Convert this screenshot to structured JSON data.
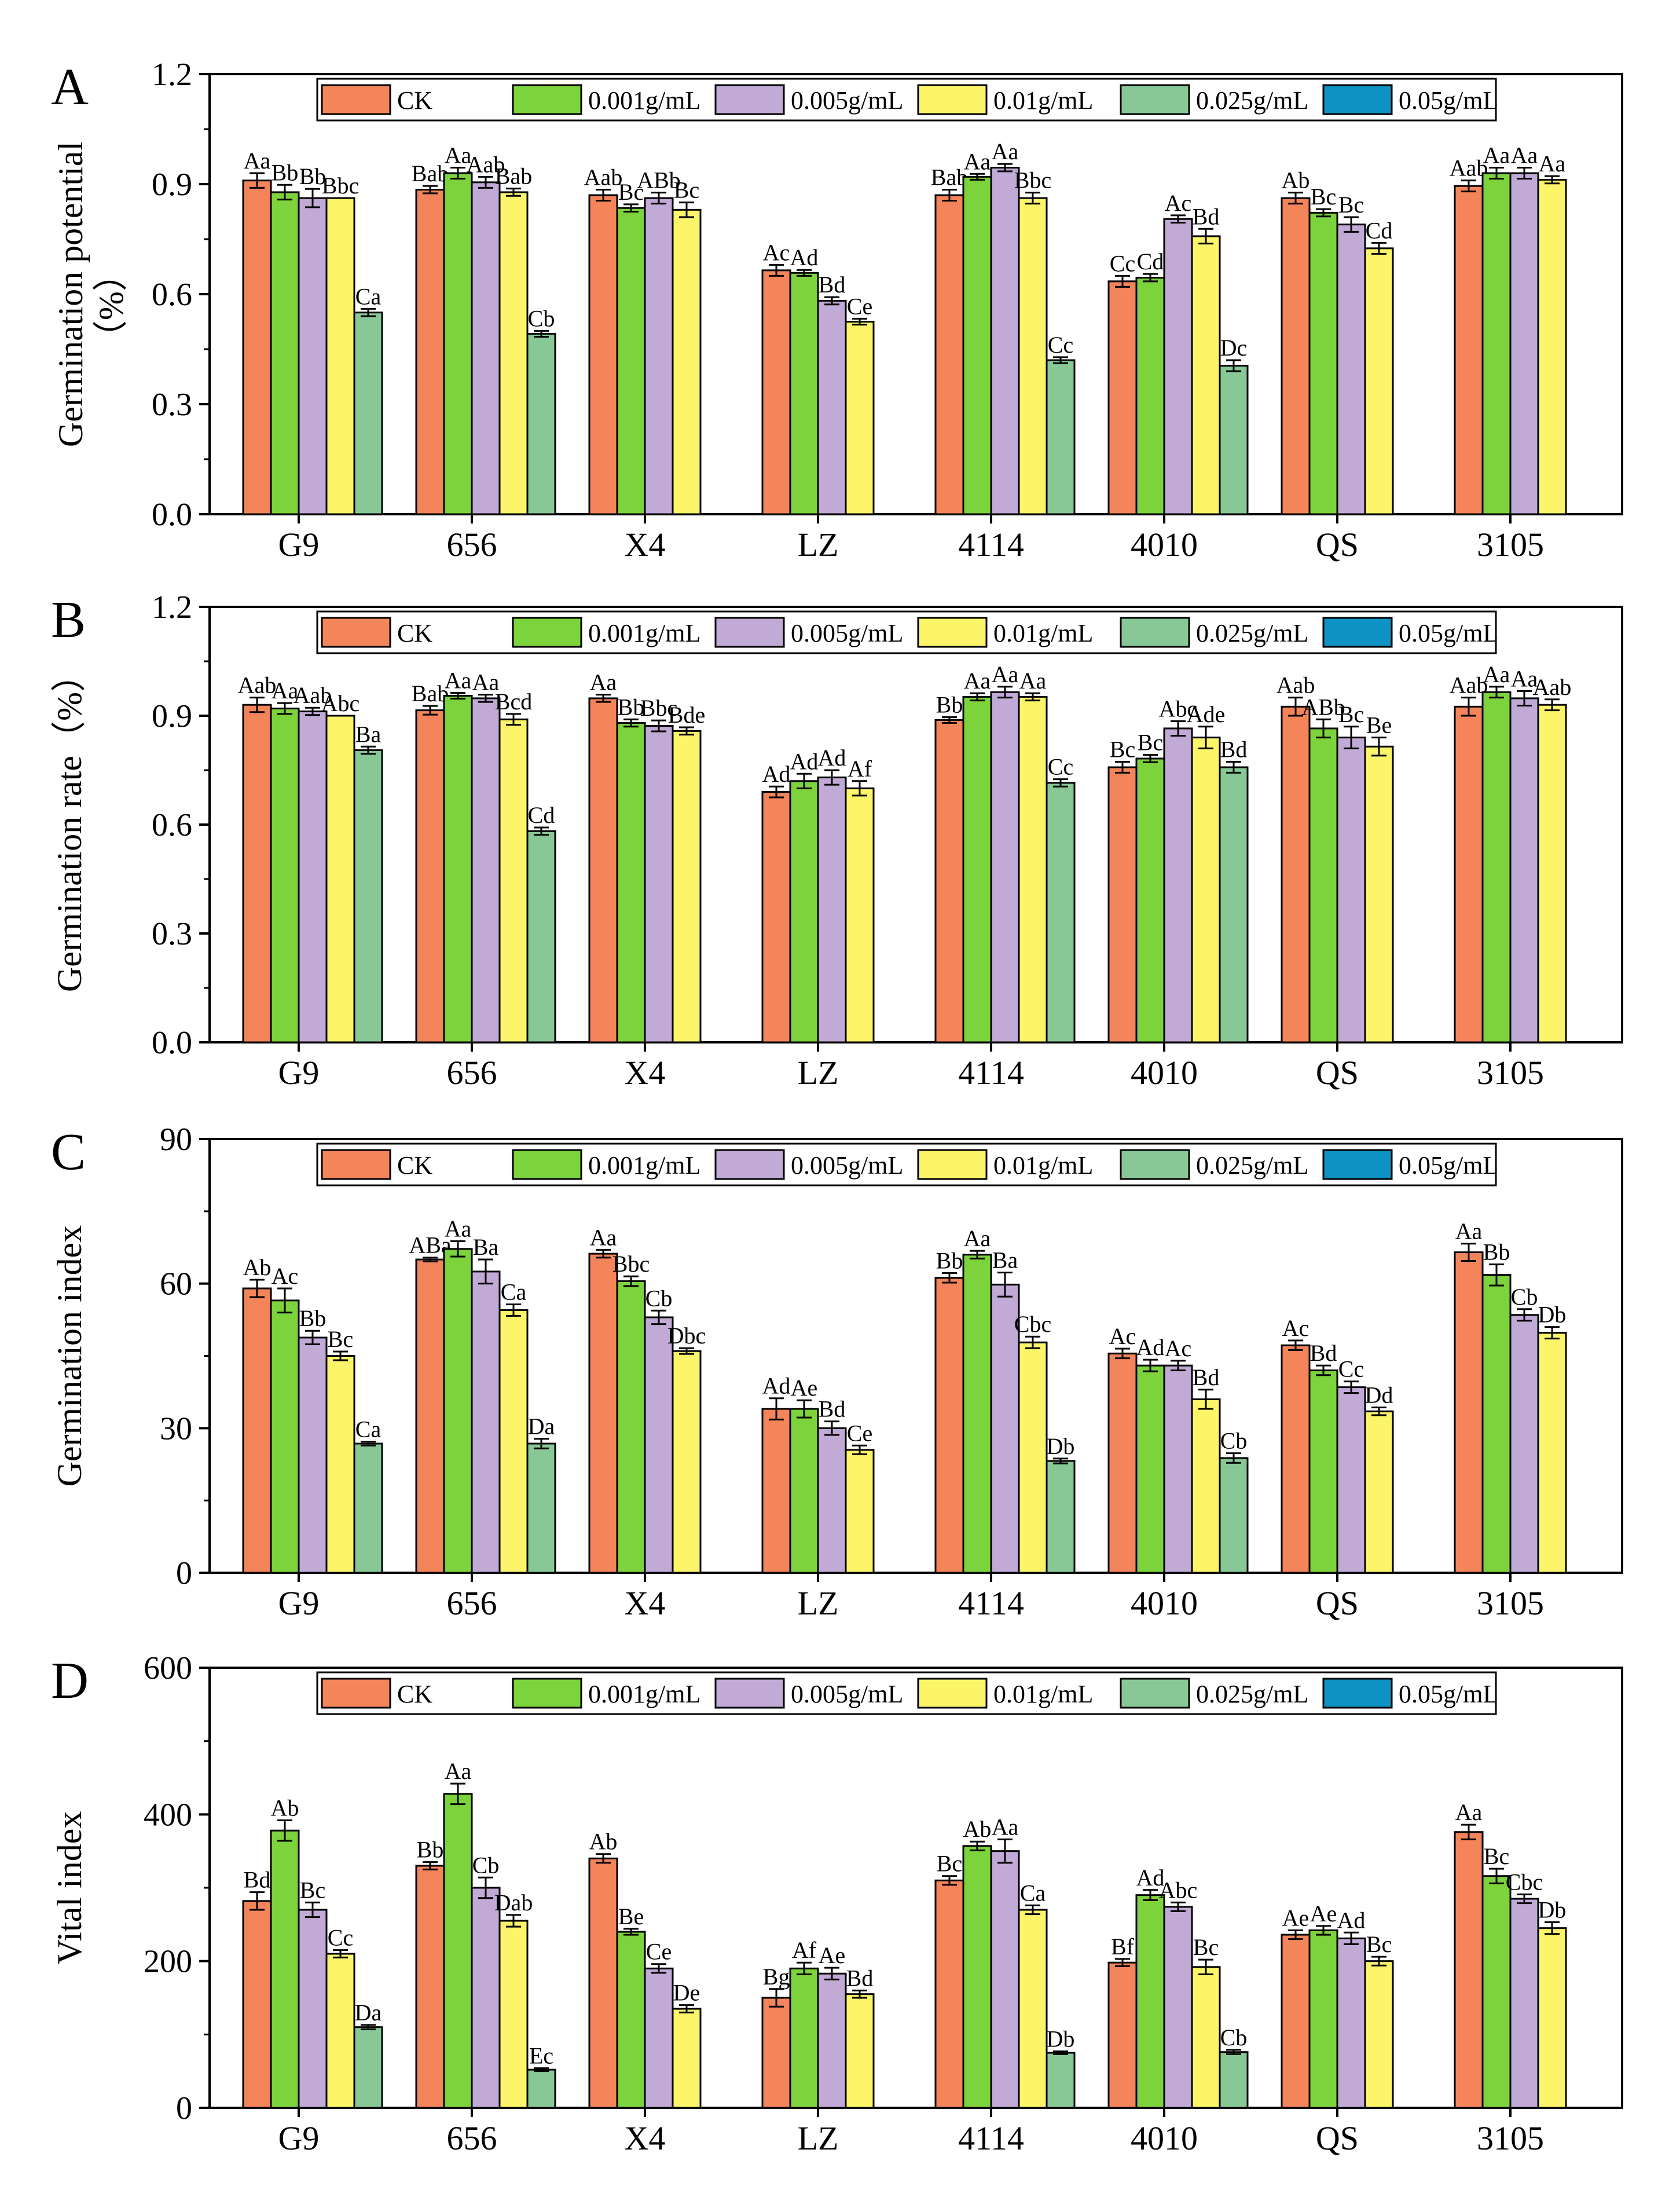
{
  "colors": {
    "CK": "#f4845a",
    "0.001g/mL": "#7dd33b",
    "0.005g/mL": "#c1aad6",
    "0.01g/mL": "#fcf56a",
    "0.025g/mL": "#88c896",
    "0.05g/mL": "#0d92c3"
  },
  "chart_data": [
    {
      "type": "bar",
      "panel": "A",
      "ylabel": "Germination potential",
      "ylabel_unit": "（%）",
      "ylim": [
        0,
        1.2
      ],
      "yticks": [
        "0.0",
        "0.3",
        "0.6",
        "0.9",
        "1.2"
      ],
      "categories": [
        "G9",
        "656",
        "X4",
        "LZ",
        "4114",
        "4010",
        "QS",
        "3105"
      ],
      "legend": [
        "CK",
        "0.001g/mL",
        "0.005g/mL",
        "0.01g/mL",
        "0.025g/mL",
        "0.05g/mL"
      ],
      "series": [
        {
          "name": "CK",
          "values": [
            0.91,
            0.885,
            0.87,
            0.665,
            0.87,
            0.635,
            0.862,
            0.895
          ],
          "errors": [
            0.02,
            0.01,
            0.015,
            0.015,
            0.015,
            0.015,
            0.015,
            0.015
          ],
          "labels": [
            "Aa",
            "Bab",
            "Aab",
            "Ac",
            "Bab",
            "Cc",
            "Ab",
            "Aab"
          ]
        },
        {
          "name": "0.001g/mL",
          "values": [
            0.878,
            0.93,
            0.835,
            0.658,
            0.92,
            0.645,
            0.822,
            0.93
          ],
          "errors": [
            0.02,
            0.015,
            0.01,
            0.008,
            0.008,
            0.01,
            0.01,
            0.015
          ],
          "labels": [
            "Bb",
            "Aa",
            "Bc",
            "Ad",
            "Aa",
            "Cd",
            "Bc",
            "Aa"
          ]
        },
        {
          "name": "0.005g/mL",
          "values": [
            0.862,
            0.905,
            0.862,
            0.582,
            0.945,
            0.805,
            0.79,
            0.93
          ],
          "errors": [
            0.025,
            0.015,
            0.015,
            0.01,
            0.01,
            0.01,
            0.02,
            0.015
          ],
          "labels": [
            "Bb",
            "Aab",
            "ABb",
            "Bd",
            "Aa",
            "Ac",
            "Bc",
            "Aa"
          ]
        },
        {
          "name": "0.01g/mL",
          "values": [
            0.862,
            0.878,
            0.83,
            0.525,
            0.862,
            0.758,
            0.725,
            0.912
          ],
          "errors": [
            0,
            0.01,
            0.02,
            0.008,
            0.015,
            0.02,
            0.015,
            0.01
          ],
          "labels": [
            "Bbc",
            "Bab",
            "Bc",
            "Ce",
            "Bbc",
            "Bd",
            "Cd",
            "Aa"
          ]
        },
        {
          "name": "0.025g/mL",
          "values": [
            0.55,
            0.492,
            null,
            null,
            0.42,
            0.405,
            null,
            null
          ],
          "errors": [
            0.01,
            0.008,
            0,
            0,
            0.008,
            0.015,
            0,
            0
          ],
          "labels": [
            "Ca",
            "Cb",
            "",
            "",
            "Cc",
            "Dc",
            "",
            ""
          ]
        },
        {
          "name": "0.05g/mL",
          "values": [
            null,
            null,
            null,
            null,
            null,
            null,
            null,
            null
          ],
          "errors": [
            0,
            0,
            0,
            0,
            0,
            0,
            0,
            0
          ],
          "labels": [
            "",
            "",
            "",
            "",
            "",
            "",
            "",
            ""
          ]
        }
      ]
    },
    {
      "type": "bar",
      "panel": "B",
      "ylabel": "Germination rate（%）",
      "ylabel_unit": "",
      "ylim": [
        0,
        1.2
      ],
      "yticks": [
        "0.0",
        "0.3",
        "0.6",
        "0.9",
        "1.2"
      ],
      "categories": [
        "G9",
        "656",
        "X4",
        "LZ",
        "4114",
        "4010",
        "QS",
        "3105"
      ],
      "legend": [
        "CK",
        "0.001g/mL",
        "0.005g/mL",
        "0.01g/mL",
        "0.025g/mL",
        "0.05g/mL"
      ],
      "series": [
        {
          "name": "CK",
          "values": [
            0.93,
            0.915,
            0.948,
            0.69,
            0.888,
            0.758,
            0.925,
            0.925
          ],
          "errors": [
            0.02,
            0.012,
            0.01,
            0.015,
            0.008,
            0.015,
            0.025,
            0.025
          ],
          "labels": [
            "Aab",
            "Bab",
            "Aa",
            "Ad",
            "Bb",
            "Bc",
            "Aab",
            "Aab"
          ]
        },
        {
          "name": "0.001g/mL",
          "values": [
            0.92,
            0.955,
            0.88,
            0.72,
            0.952,
            0.782,
            0.865,
            0.965
          ],
          "errors": [
            0.015,
            0.008,
            0.01,
            0.02,
            0.01,
            0.01,
            0.025,
            0.015
          ],
          "labels": [
            "Aa",
            "Aa",
            "Bb",
            "Ad",
            "Aa",
            "Bc",
            "ABb",
            "Aa"
          ]
        },
        {
          "name": "0.005g/mL",
          "values": [
            0.912,
            0.948,
            0.872,
            0.73,
            0.965,
            0.865,
            0.84,
            0.948
          ],
          "errors": [
            0.01,
            0.01,
            0.015,
            0.02,
            0.015,
            0.02,
            0.03,
            0.02
          ],
          "labels": [
            "Aab",
            "Aa",
            "Bbc",
            "Ad",
            "Aa",
            "Abc",
            "Bc",
            "Aa"
          ]
        },
        {
          "name": "0.01g/mL",
          "values": [
            0.9,
            0.89,
            0.858,
            0.7,
            0.952,
            0.84,
            0.815,
            0.93
          ],
          "errors": [
            0,
            0.015,
            0.01,
            0.02,
            0.01,
            0.03,
            0.025,
            0.015
          ],
          "labels": [
            "Abc",
            "Bcd",
            "Bde",
            "Af",
            "Aa",
            "Ade",
            "Be",
            "Aab"
          ]
        },
        {
          "name": "0.025g/mL",
          "values": [
            0.805,
            0.582,
            null,
            null,
            0.715,
            0.758,
            null,
            null
          ],
          "errors": [
            0.01,
            0.01,
            0,
            0,
            0.01,
            0.015,
            0,
            0
          ],
          "labels": [
            "Ba",
            "Cd",
            "",
            "",
            "Cc",
            "Bd",
            "",
            ""
          ]
        },
        {
          "name": "0.05g/mL",
          "values": [
            null,
            null,
            null,
            null,
            null,
            null,
            null,
            null
          ],
          "errors": [
            0,
            0,
            0,
            0,
            0,
            0,
            0,
            0
          ],
          "labels": [
            "",
            "",
            "",
            "",
            "",
            "",
            "",
            ""
          ]
        }
      ]
    },
    {
      "type": "bar",
      "panel": "C",
      "ylabel": "Germination index",
      "ylabel_unit": "",
      "ylim": [
        0,
        90
      ],
      "yticks": [
        "0",
        "30",
        "60",
        "90"
      ],
      "categories": [
        "G9",
        "656",
        "X4",
        "LZ",
        "4114",
        "4010",
        "QS",
        "3105"
      ],
      "legend": [
        "CK",
        "0.001g/mL",
        "0.005g/mL",
        "0.01g/mL",
        "0.025g/mL",
        "0.05g/mL"
      ],
      "series": [
        {
          "name": "CK",
          "values": [
            59,
            65,
            66.2,
            34,
            61.2,
            45.5,
            47.2,
            66.5
          ],
          "errors": [
            1.8,
            0.4,
            0.8,
            2.2,
            1.0,
            1.0,
            1.0,
            1.8
          ],
          "labels": [
            "Ab",
            "ABa",
            "Aa",
            "Ad",
            "Bb",
            "Ac",
            "Ac",
            "Aa"
          ]
        },
        {
          "name": "0.001g/mL",
          "values": [
            56.5,
            67.2,
            60.5,
            34,
            66,
            43,
            42,
            61.8
          ],
          "errors": [
            2.5,
            1.6,
            1.0,
            1.8,
            0.8,
            1.2,
            1.0,
            2.2
          ],
          "labels": [
            "Ac",
            "Aa",
            "Bbc",
            "Ae",
            "Aa",
            "Ad",
            "Bd",
            "Bb"
          ]
        },
        {
          "name": "0.005g/mL",
          "values": [
            48.8,
            62.5,
            53,
            30,
            59.8,
            43,
            38.5,
            53.5
          ],
          "errors": [
            1.4,
            2.5,
            1.4,
            1.4,
            2.5,
            1.0,
            1.2,
            1.2
          ],
          "labels": [
            "Bb",
            "Ba",
            "Cb",
            "Bd",
            "Ba",
            "Ac",
            "Cc",
            "Cb"
          ]
        },
        {
          "name": "0.01g/mL",
          "values": [
            45,
            54.5,
            46,
            25.5,
            47.8,
            36,
            33.5,
            49.8
          ],
          "errors": [
            0.9,
            1.2,
            0.6,
            0.9,
            1.2,
            2.0,
            0.8,
            1.2
          ],
          "labels": [
            "Bc",
            "Ca",
            "Dbc",
            "Ce",
            "Cbc",
            "Bd",
            "Dd",
            "Db"
          ]
        },
        {
          "name": "0.025g/mL",
          "values": [
            26.8,
            26.8,
            null,
            null,
            23.2,
            23.8,
            null,
            null
          ],
          "errors": [
            0.4,
            1.0,
            0,
            0,
            0.5,
            1.0,
            0,
            0
          ],
          "labels": [
            "Ca",
            "Da",
            "",
            "",
            "Db",
            "Cb",
            "",
            ""
          ]
        },
        {
          "name": "0.05g/mL",
          "values": [
            null,
            null,
            null,
            null,
            null,
            null,
            null,
            null
          ],
          "errors": [
            0,
            0,
            0,
            0,
            0,
            0,
            0,
            0
          ],
          "labels": [
            "",
            "",
            "",
            "",
            "",
            "",
            "",
            ""
          ]
        }
      ]
    },
    {
      "type": "bar",
      "panel": "D",
      "ylabel": "Vital index",
      "ylabel_unit": "",
      "ylim": [
        0,
        600
      ],
      "yticks": [
        "0",
        "200",
        "400",
        "600"
      ],
      "categories": [
        "G9",
        "656",
        "X4",
        "LZ",
        "4114",
        "4010",
        "QS",
        "3105"
      ],
      "legend": [
        "CK",
        "0.001g/mL",
        "0.005g/mL",
        "0.01g/mL",
        "0.025g/mL",
        "0.05g/mL"
      ],
      "series": [
        {
          "name": "CK",
          "values": [
            282,
            330,
            340,
            150,
            310,
            198,
            236,
            376
          ],
          "errors": [
            12,
            5,
            6,
            12,
            6,
            5,
            6,
            10
          ],
          "labels": [
            "Bd",
            "Bb",
            "Ab",
            "Bg",
            "Bc",
            "Bf",
            "Ae",
            "Aa"
          ]
        },
        {
          "name": "0.001g/mL",
          "values": [
            378,
            428,
            240,
            190,
            357,
            290,
            242,
            316
          ],
          "errors": [
            14,
            14,
            4,
            8,
            6,
            7,
            6,
            10
          ],
          "labels": [
            "Ab",
            "Aa",
            "Be",
            "Af",
            "Ab",
            "Ad",
            "Ae",
            "Bc"
          ]
        },
        {
          "name": "0.005g/mL",
          "values": [
            270,
            300,
            190,
            183,
            350,
            274,
            231,
            285
          ],
          "errors": [
            10,
            14,
            6,
            8,
            16,
            6,
            8,
            6
          ],
          "labels": [
            "Bc",
            "Cb",
            "Ce",
            "Ae",
            "Aa",
            "Abc",
            "Ad",
            "Cbc"
          ]
        },
        {
          "name": "0.01g/mL",
          "values": [
            210,
            255,
            135,
            155,
            270,
            192,
            200,
            245
          ],
          "errors": [
            5,
            8,
            5,
            5,
            6,
            10,
            6,
            8
          ],
          "labels": [
            "Cc",
            "Dab",
            "De",
            "Bd",
            "Ca",
            "Bc",
            "Bc",
            "Db"
          ]
        },
        {
          "name": "0.025g/mL",
          "values": [
            110,
            52,
            null,
            null,
            75,
            76,
            null,
            null
          ],
          "errors": [
            3,
            2,
            0,
            0,
            2,
            3,
            0,
            0
          ],
          "labels": [
            "Da",
            "Ec",
            "",
            "",
            "Db",
            "Cb",
            "",
            ""
          ]
        },
        {
          "name": "0.05g/mL",
          "values": [
            null,
            null,
            null,
            null,
            null,
            null,
            null,
            null
          ],
          "errors": [
            0,
            0,
            0,
            0,
            0,
            0,
            0,
            0
          ],
          "labels": [
            "",
            "",
            "",
            "",
            "",
            "",
            "",
            ""
          ]
        }
      ]
    }
  ]
}
